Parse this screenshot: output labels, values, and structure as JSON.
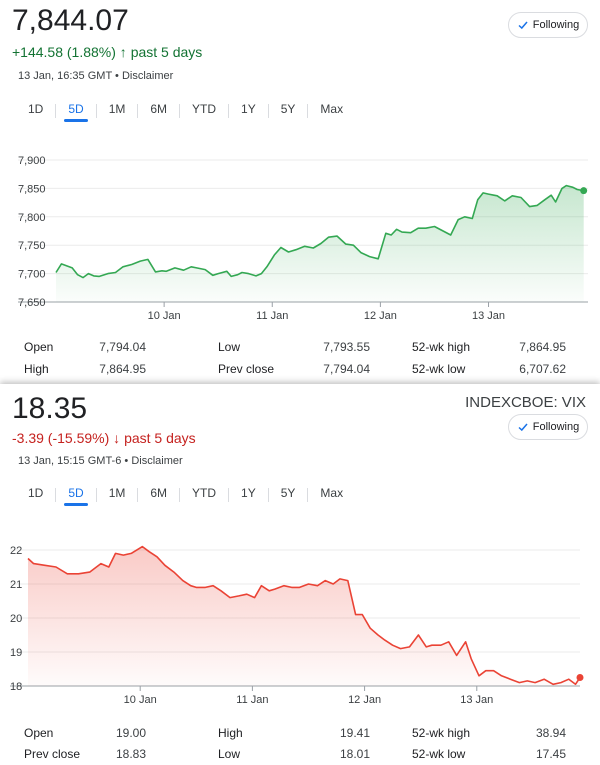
{
  "ftse": {
    "price": "7,844.07",
    "change": "+144.58 (1.88%)",
    "change_arrow": "↑",
    "period": "past 5 days",
    "timestamp": "13 Jan, 16:35 GMT",
    "disclaimer": "Disclaimer",
    "follow_label": "Following",
    "tabs": [
      "1D",
      "5D",
      "1M",
      "6M",
      "YTD",
      "1Y",
      "5Y",
      "Max"
    ],
    "active_tab": "5D",
    "line_color": "#34a853",
    "stats": [
      {
        "label": "Open",
        "value": "7,794.04"
      },
      {
        "label": "Low",
        "value": "7,793.55"
      },
      {
        "label": "52-wk high",
        "value": "7,864.95"
      },
      {
        "label": "High",
        "value": "7,864.95"
      },
      {
        "label": "Prev close",
        "value": "7,794.04"
      },
      {
        "label": "52-wk low",
        "value": "6,707.62"
      }
    ]
  },
  "vix": {
    "price": "18.35",
    "ticker": "INDEXCBOE: VIX",
    "change": "-3.39 (-15.59%)",
    "change_arrow": "↓",
    "period": "past 5 days",
    "timestamp": "13 Jan, 15:15 GMT-6",
    "disclaimer": "Disclaimer",
    "follow_label": "Following",
    "tabs": [
      "1D",
      "5D",
      "1M",
      "6M",
      "YTD",
      "1Y",
      "5Y",
      "Max"
    ],
    "active_tab": "5D",
    "line_color": "#ea4335",
    "stats": [
      {
        "label": "Open",
        "value": "19.00"
      },
      {
        "label": "High",
        "value": "19.41"
      },
      {
        "label": "52-wk high",
        "value": "38.94"
      },
      {
        "label": "Prev close",
        "value": "18.83"
      },
      {
        "label": "Low",
        "value": "18.01"
      },
      {
        "label": "52-wk low",
        "value": "17.45"
      }
    ]
  },
  "chart_data": [
    {
      "type": "line",
      "ylim": [
        7650,
        7900
      ],
      "yticks": [
        "7,900",
        "7,850",
        "7,800",
        "7,750",
        "7,700",
        "7,650"
      ],
      "ytick_values": [
        7900,
        7850,
        7800,
        7750,
        7700,
        7650
      ],
      "xticks": [
        "10 Jan",
        "11 Jan",
        "12 Jan",
        "13 Jan"
      ],
      "xtick_positions": [
        1,
        2,
        3,
        4
      ],
      "xlim": [
        0,
        4.92
      ],
      "grid": true,
      "series": [
        {
          "x": [
            0,
            0.05,
            0.15,
            0.2,
            0.25,
            0.3,
            0.35,
            0.4,
            0.48,
            0.55,
            0.62,
            0.7,
            0.78,
            0.85,
            0.92,
            0.98,
            1.02,
            1.1,
            1.18,
            1.25,
            1.3,
            1.38,
            1.45,
            1.5,
            1.58,
            1.62,
            1.68,
            1.72,
            1.78,
            1.85,
            1.9,
            1.95,
            2.02,
            2.08,
            2.15,
            2.22,
            2.3,
            2.38,
            2.45,
            2.52,
            2.6,
            2.68,
            2.75,
            2.82,
            2.9,
            2.98,
            3.05,
            3.1,
            3.15,
            3.2,
            3.28,
            3.35,
            3.42,
            3.5,
            3.58,
            3.65,
            3.72,
            3.78,
            3.85,
            3.9,
            3.95,
            4.0,
            4.05,
            4.08,
            4.15,
            4.22,
            4.3,
            4.38,
            4.45,
            4.52,
            4.58,
            4.62,
            4.68,
            4.72,
            4.78,
            4.82,
            4.88
          ],
          "values": [
            7702,
            7717,
            7710,
            7698,
            7693,
            7700,
            7696,
            7695,
            7700,
            7702,
            7712,
            7716,
            7722,
            7725,
            7703,
            7705,
            7704,
            7710,
            7706,
            7712,
            7710,
            7707,
            7697,
            7700,
            7704,
            7695,
            7698,
            7702,
            7700,
            7696,
            7700,
            7712,
            7733,
            7746,
            7738,
            7742,
            7748,
            7745,
            7753,
            7764,
            7766,
            7752,
            7750,
            7737,
            7730,
            7726,
            7771,
            7768,
            7778,
            7773,
            7772,
            7780,
            7780,
            7783,
            7775,
            7768,
            7795,
            7800,
            7797,
            7830,
            7842,
            7840,
            7838,
            7837,
            7828,
            7837,
            7834,
            7818,
            7820,
            7830,
            7838,
            7826,
            7850,
            7855,
            7852,
            7848,
            7846
          ]
        }
      ]
    },
    {
      "type": "line",
      "ylim": [
        18,
        22
      ],
      "yticks": [
        "22",
        "21",
        "20",
        "19",
        "18"
      ],
      "ytick_values": [
        22,
        21,
        20,
        19,
        18
      ],
      "xticks": [
        "10 Jan",
        "11 Jan",
        "12 Jan",
        "13 Jan"
      ],
      "xtick_positions": [
        1,
        2,
        3,
        4
      ],
      "xlim": [
        0,
        4.92
      ],
      "grid": true,
      "series": [
        {
          "x": [
            0,
            0.05,
            0.15,
            0.25,
            0.35,
            0.45,
            0.55,
            0.65,
            0.72,
            0.78,
            0.85,
            0.92,
            1.02,
            1.08,
            1.15,
            1.22,
            1.3,
            1.38,
            1.45,
            1.5,
            1.58,
            1.65,
            1.72,
            1.8,
            1.88,
            1.95,
            2.02,
            2.08,
            2.15,
            2.2,
            2.28,
            2.35,
            2.42,
            2.5,
            2.58,
            2.65,
            2.72,
            2.78,
            2.85,
            2.92,
            2.98,
            3.05,
            3.12,
            3.18,
            3.25,
            3.32,
            3.4,
            3.48,
            3.55,
            3.6,
            3.68,
            3.75,
            3.82,
            3.9,
            3.95,
            4.02,
            4.08,
            4.15,
            4.22,
            4.3,
            4.38,
            4.45,
            4.52,
            4.6,
            4.68,
            4.75,
            4.82,
            4.88,
            4.92
          ],
          "values": [
            21.75,
            21.6,
            21.55,
            21.5,
            21.3,
            21.3,
            21.35,
            21.6,
            21.5,
            21.9,
            21.85,
            21.9,
            22.1,
            21.95,
            21.8,
            21.55,
            21.35,
            21.1,
            20.95,
            20.9,
            20.9,
            20.95,
            20.8,
            20.6,
            20.65,
            20.7,
            20.6,
            20.95,
            20.8,
            20.85,
            20.95,
            20.9,
            20.9,
            21.0,
            20.95,
            21.1,
            21.0,
            21.15,
            21.1,
            20.1,
            20.1,
            19.7,
            19.5,
            19.35,
            19.2,
            19.1,
            19.15,
            19.5,
            19.15,
            19.2,
            19.2,
            19.3,
            18.9,
            19.3,
            18.8,
            18.3,
            18.45,
            18.45,
            18.3,
            18.2,
            18.1,
            18.15,
            18.1,
            18.2,
            18.05,
            18.1,
            18.2,
            18.05,
            18.25
          ]
        }
      ]
    }
  ]
}
